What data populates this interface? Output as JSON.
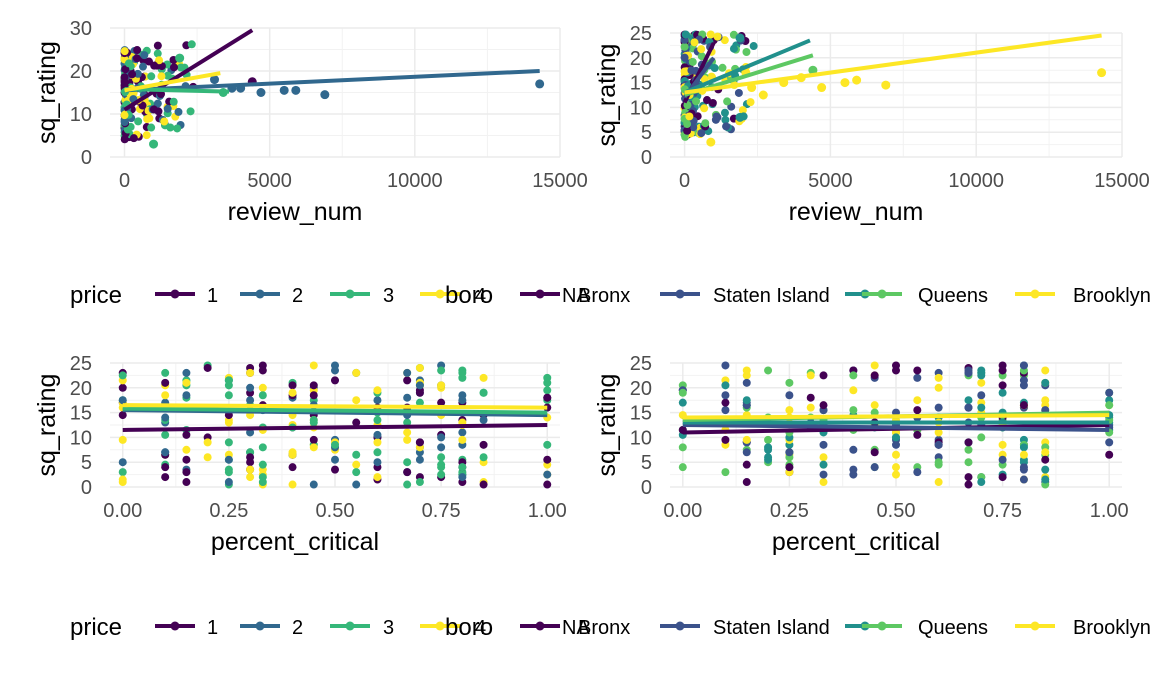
{
  "palettes": {
    "price": [
      "#440154",
      "#31688e",
      "#35b779",
      "#fde725"
    ],
    "boro": [
      "#440154",
      "#3b528b",
      "#21908c",
      "#5dc863",
      "#fde725"
    ]
  },
  "legends": [
    {
      "name": "price",
      "title": "price",
      "items": [
        {
          "label": "1",
          "color": "#440154"
        },
        {
          "label": "2",
          "color": "#31688e"
        },
        {
          "label": "3",
          "color": "#35b779"
        },
        {
          "label": "4",
          "color": "#fde725"
        }
      ]
    },
    {
      "name": "boro",
      "title": "boro",
      "items": [
        {
          "label": "NA",
          "color": "#440154"
        },
        {
          "label": "Bronx",
          "color": "#3b528b"
        },
        {
          "label": "Staten Island",
          "color": "#21908c"
        },
        {
          "label": "Queens",
          "color": "#5dc863"
        },
        {
          "label": "Brooklyn",
          "color": "#fde725"
        }
      ]
    }
  ],
  "chart_data": [
    {
      "type": "scatter",
      "panel": "top-left",
      "title": "",
      "xlabel": "review_num",
      "ylabel": "sq_rating",
      "xlim": [
        -500,
        15000
      ],
      "ylim": [
        0,
        30
      ],
      "xticks": [
        0,
        5000,
        10000,
        15000
      ],
      "yticks": [
        0,
        10,
        20,
        30
      ],
      "color_by": "price",
      "grid": true,
      "legend": "bottom",
      "fit_lines": [
        {
          "group": "1",
          "x": [
            0,
            4400
          ],
          "y": [
            11,
            29.5
          ]
        },
        {
          "group": "2",
          "x": [
            0,
            14300
          ],
          "y": [
            15.5,
            20
          ]
        },
        {
          "group": "3",
          "x": [
            0,
            3600
          ],
          "y": [
            15.8,
            15.2
          ]
        },
        {
          "group": "4",
          "x": [
            0,
            3300
          ],
          "y": [
            15.5,
            19.5
          ]
        }
      ],
      "highlight_points": [
        {
          "group": "2",
          "x": 14300,
          "y": 17
        },
        {
          "group": "2",
          "x": 6900,
          "y": 14.5
        },
        {
          "group": "2",
          "x": 5900,
          "y": 15.5
        },
        {
          "group": "2",
          "x": 5500,
          "y": 15.5
        },
        {
          "group": "2",
          "x": 4700,
          "y": 15
        },
        {
          "group": "1",
          "x": 4400,
          "y": 17.5
        },
        {
          "group": "2",
          "x": 4000,
          "y": 16
        },
        {
          "group": "2",
          "x": 3700,
          "y": 16
        },
        {
          "group": "3",
          "x": 3400,
          "y": 15
        },
        {
          "group": "2",
          "x": 3100,
          "y": 18
        },
        {
          "group": "3",
          "x": 1900,
          "y": 23
        },
        {
          "group": "3",
          "x": 1000,
          "y": 3
        }
      ]
    },
    {
      "type": "scatter",
      "panel": "top-right",
      "title": "",
      "xlabel": "review_num",
      "ylabel": "sq_rating",
      "xlim": [
        -500,
        15000
      ],
      "ylim": [
        0,
        25
      ],
      "xticks": [
        0,
        5000,
        10000,
        15000
      ],
      "yticks": [
        0,
        5,
        10,
        15,
        20,
        25
      ],
      "color_by": "boro",
      "grid": true,
      "legend": "bottom",
      "fit_lines": [
        {
          "group": "NA",
          "x": [
            0,
            1000
          ],
          "y": [
            11,
            23
          ]
        },
        {
          "group": "Bronx",
          "x": [
            0,
            1000
          ],
          "y": [
            12,
            20
          ]
        },
        {
          "group": "Staten Island",
          "x": [
            0,
            4300
          ],
          "y": [
            13,
            23.5
          ]
        },
        {
          "group": "Queens",
          "x": [
            0,
            4400
          ],
          "y": [
            12.5,
            20.5
          ]
        },
        {
          "group": "Brooklyn",
          "x": [
            0,
            14300
          ],
          "y": [
            13,
            24.5
          ]
        }
      ],
      "highlight_points": [
        {
          "group": "Brooklyn",
          "x": 14300,
          "y": 17
        },
        {
          "group": "Brooklyn",
          "x": 6900,
          "y": 14.5
        },
        {
          "group": "Brooklyn",
          "x": 5900,
          "y": 15.5
        },
        {
          "group": "Brooklyn",
          "x": 5500,
          "y": 15
        },
        {
          "group": "Brooklyn",
          "x": 4700,
          "y": 14
        },
        {
          "group": "Queens",
          "x": 4400,
          "y": 17.5
        },
        {
          "group": "Brooklyn",
          "x": 4000,
          "y": 16
        },
        {
          "group": "Brooklyn",
          "x": 3400,
          "y": 15
        },
        {
          "group": "Brooklyn",
          "x": 2700,
          "y": 12.5
        },
        {
          "group": "Brooklyn",
          "x": 2300,
          "y": 14
        },
        {
          "group": "Brooklyn",
          "x": 2100,
          "y": 17
        },
        {
          "group": "Staten Island",
          "x": 1900,
          "y": 24
        },
        {
          "group": "Staten Island",
          "x": 1900,
          "y": 8
        },
        {
          "group": "Brooklyn",
          "x": 900,
          "y": 3
        }
      ]
    },
    {
      "type": "scatter",
      "panel": "bottom-left",
      "title": "",
      "xlabel": "percent_critical",
      "ylabel": "sq_rating",
      "xlim": [
        -0.03,
        1.03
      ],
      "ylim": [
        0,
        25
      ],
      "xticks": [
        0,
        0.25,
        0.5,
        0.75,
        1
      ],
      "xtick_labels": [
        "0.00",
        "0.25",
        "0.50",
        "0.75",
        "1.00"
      ],
      "yticks": [
        0,
        5,
        10,
        15,
        20,
        25
      ],
      "color_by": "price",
      "grid": true,
      "legend": "bottom",
      "fit_lines": [
        {
          "group": "1",
          "x": [
            0,
            1
          ],
          "y": [
            11.5,
            12.5
          ]
        },
        {
          "group": "2",
          "x": [
            0,
            1
          ],
          "y": [
            15.5,
            14.5
          ]
        },
        {
          "group": "3",
          "x": [
            0,
            1
          ],
          "y": [
            15.8,
            15
          ]
        },
        {
          "group": "4",
          "x": [
            0,
            1
          ],
          "y": [
            16.5,
            16
          ]
        }
      ]
    },
    {
      "type": "scatter",
      "panel": "bottom-right",
      "title": "",
      "xlabel": "percent_critical",
      "ylabel": "sq_rating",
      "xlim": [
        -0.03,
        1.03
      ],
      "ylim": [
        0,
        25
      ],
      "xticks": [
        0,
        0.25,
        0.5,
        0.75,
        1
      ],
      "xtick_labels": [
        "0.00",
        "0.25",
        "0.50",
        "0.75",
        "1.00"
      ],
      "yticks": [
        0,
        5,
        10,
        15,
        20,
        25
      ],
      "color_by": "boro",
      "grid": true,
      "legend": "bottom",
      "fit_lines": [
        {
          "group": "NA",
          "x": [
            0,
            1
          ],
          "y": [
            11,
            12.5
          ]
        },
        {
          "group": "Bronx",
          "x": [
            0,
            1
          ],
          "y": [
            12.5,
            11.5
          ]
        },
        {
          "group": "Staten Island",
          "x": [
            0,
            1
          ],
          "y": [
            13,
            13
          ]
        },
        {
          "group": "Queens",
          "x": [
            0,
            1
          ],
          "y": [
            13.5,
            15
          ]
        },
        {
          "group": "Brooklyn",
          "x": [
            0,
            1
          ],
          "y": [
            14,
            14.5
          ]
        }
      ]
    }
  ]
}
